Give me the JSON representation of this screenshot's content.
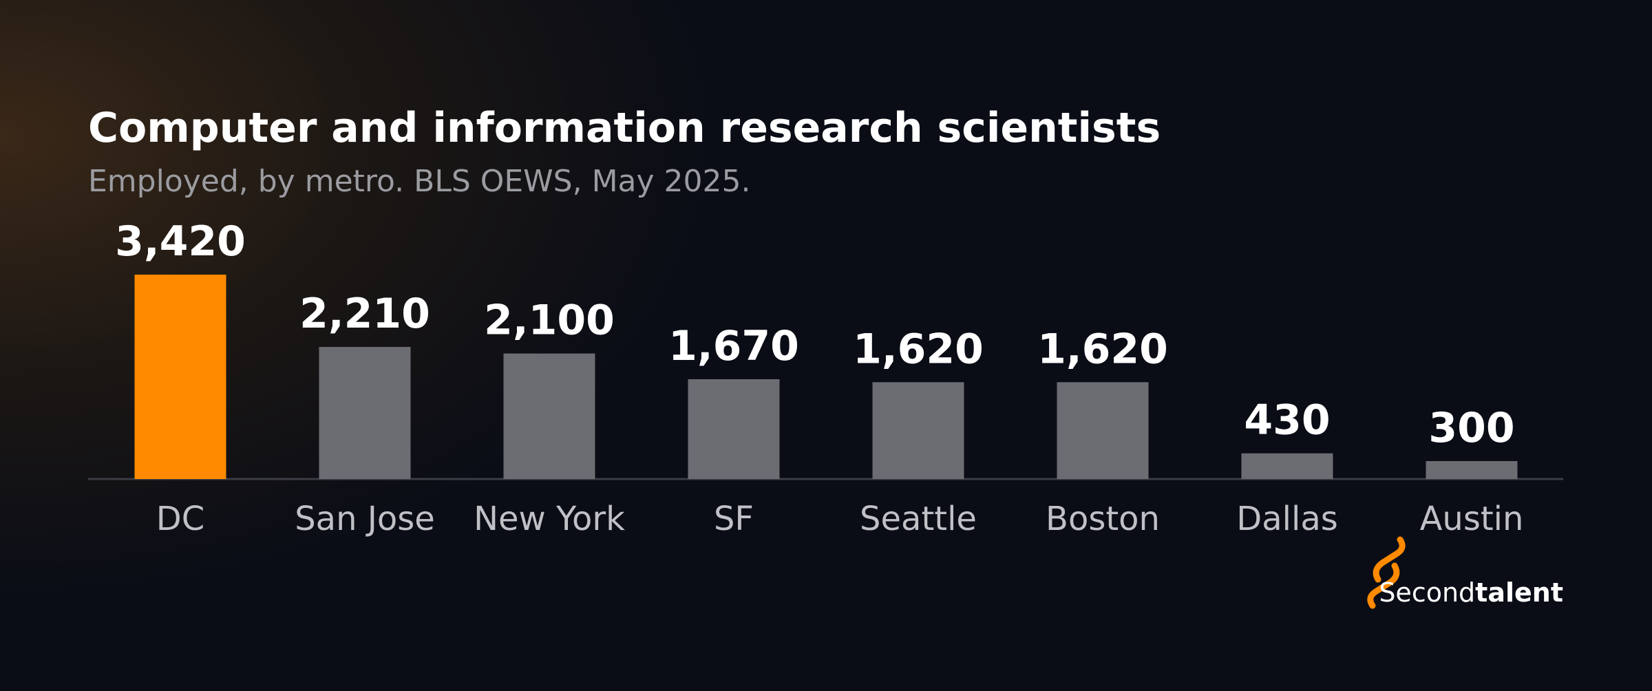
{
  "chart_data": {
    "type": "bar",
    "title": "Computer and information research scientists",
    "subtitle": "Employed, by metro. BLS OEWS, May 2025.",
    "categories": [
      "DC",
      "San Jose",
      "New York",
      "SF",
      "Seattle",
      "Boston",
      "Dallas",
      "Austin"
    ],
    "values": [
      3420,
      2210,
      2100,
      1670,
      1620,
      1620,
      430,
      300
    ],
    "value_labels": [
      "3,420",
      "2,210",
      "2,100",
      "1,670",
      "1,620",
      "1,620",
      "430",
      "300"
    ],
    "colors": [
      "#ff8a00",
      "#6b6d73",
      "#6b6d73",
      "#6b6d73",
      "#6b6d73",
      "#6b6d73",
      "#6b6d73",
      "#6b6d73"
    ]
  },
  "logo": {
    "regular": "Second",
    "bold": "talent"
  }
}
